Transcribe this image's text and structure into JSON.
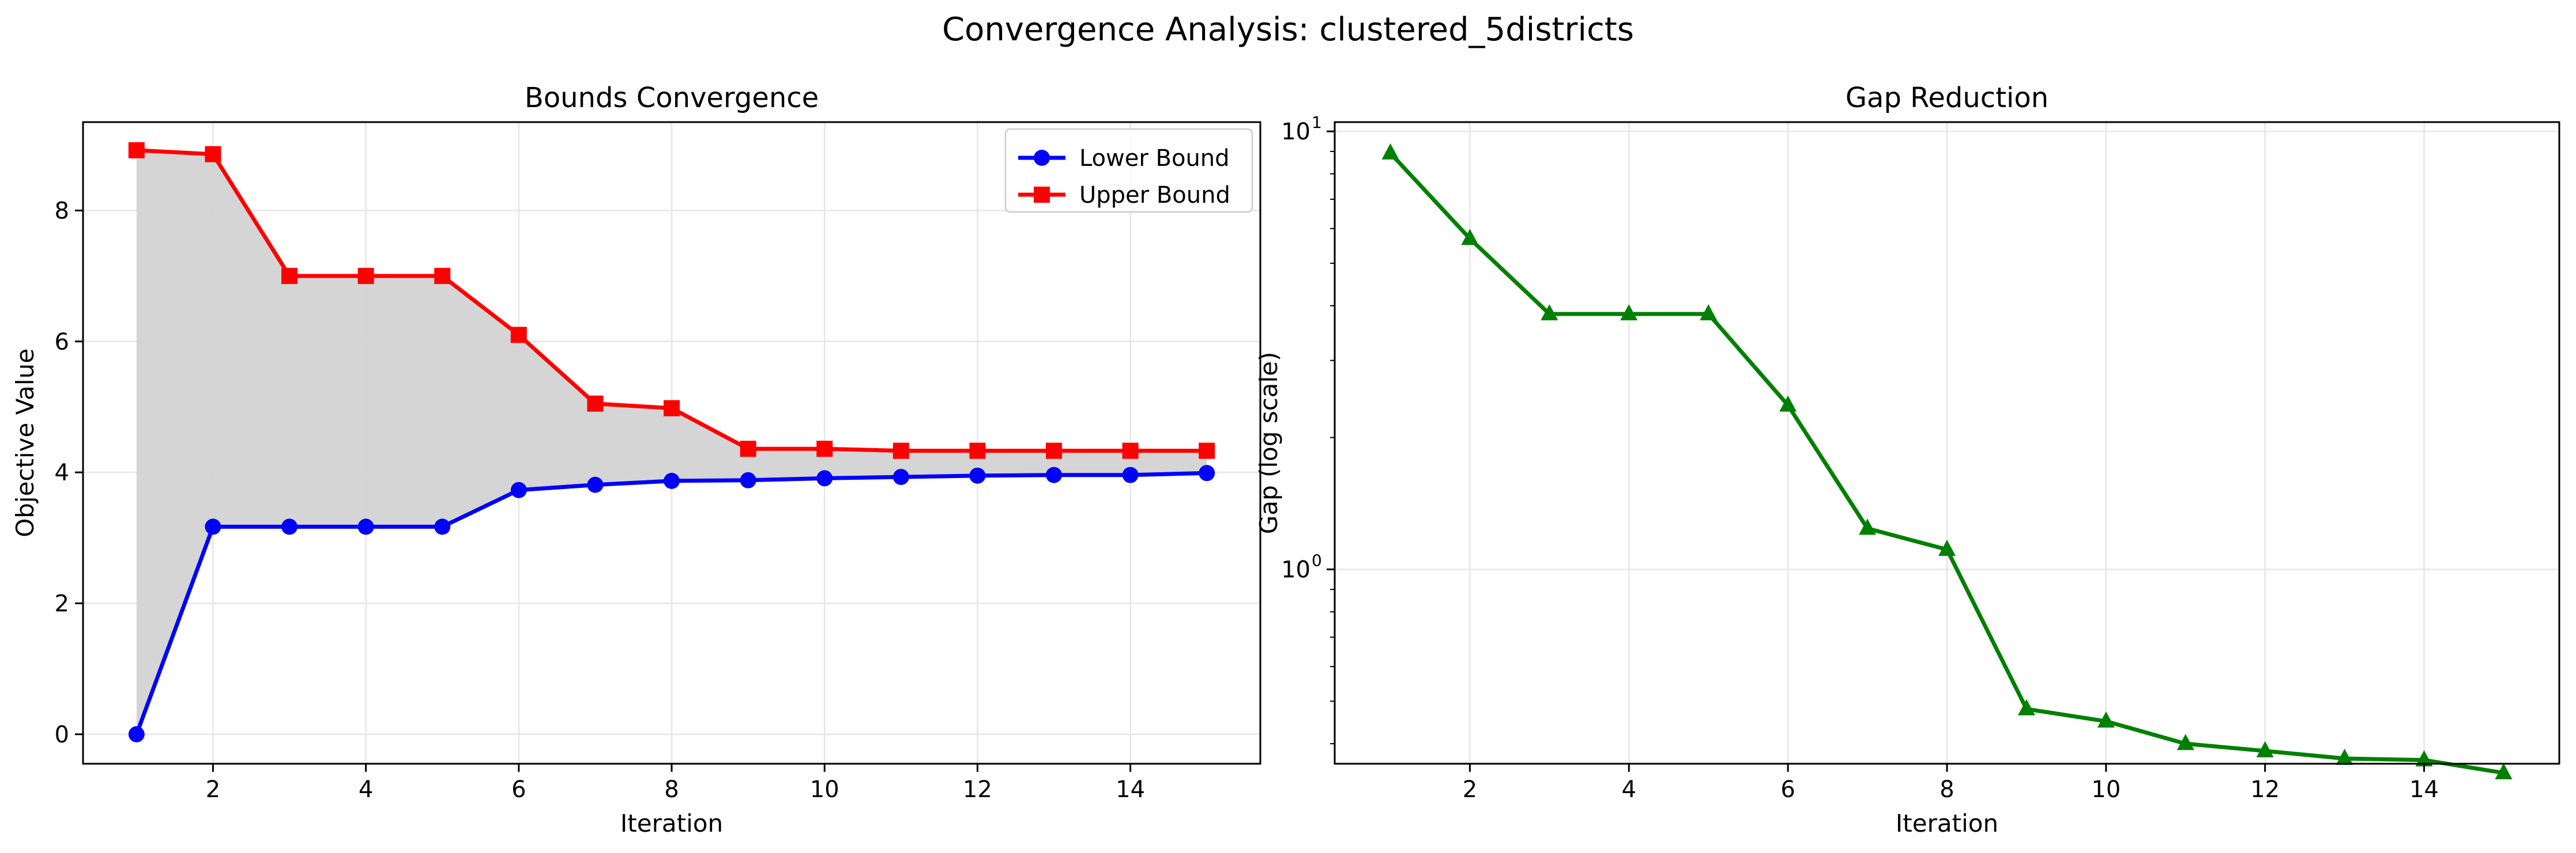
{
  "suptitle": "Convergence Analysis: clustered_5districts",
  "colors": {
    "lower": "#0000ff",
    "upper": "#ff0000",
    "gap": "#008000",
    "fill": "#d3d3d3",
    "grid": "#e6e6e6"
  },
  "chart_data": [
    {
      "type": "line",
      "title": "Bounds Convergence",
      "xlabel": "Iteration",
      "ylabel": "Objective Value",
      "x": [
        1,
        2,
        3,
        4,
        5,
        6,
        7,
        8,
        9,
        10,
        11,
        12,
        13,
        14,
        15
      ],
      "xlim": [
        0.3,
        15.7
      ],
      "ylim": [
        -0.45,
        9.35
      ],
      "xticks": [
        2,
        4,
        6,
        8,
        10,
        12,
        14
      ],
      "yticks": [
        0,
        2,
        4,
        6,
        8
      ],
      "grid": true,
      "legend": "top-right",
      "fill_between": true,
      "series": [
        {
          "name": "Lower Bound",
          "marker": "circle",
          "color": "#0000ff",
          "values": [
            0.0,
            3.17,
            3.17,
            3.17,
            3.17,
            3.73,
            3.81,
            3.87,
            3.88,
            3.91,
            3.93,
            3.95,
            3.96,
            3.96,
            3.99
          ]
        },
        {
          "name": "Upper Bound",
          "marker": "square",
          "color": "#ff0000",
          "values": [
            8.92,
            8.86,
            7.0,
            7.0,
            7.0,
            6.1,
            5.05,
            4.98,
            4.36,
            4.36,
            4.33,
            4.33,
            4.33,
            4.33,
            4.33
          ]
        }
      ]
    },
    {
      "type": "line",
      "title": "Gap Reduction",
      "xlabel": "Iteration",
      "ylabel": "Gap (log scale)",
      "yscale": "log",
      "x": [
        1,
        2,
        3,
        4,
        5,
        6,
        7,
        8,
        9,
        10,
        11,
        12,
        13,
        14,
        15
      ],
      "xlim": [
        0.3,
        15.7
      ],
      "ylim": [
        0.36,
        10.5
      ],
      "xticks": [
        2,
        4,
        6,
        8,
        10,
        12,
        14
      ],
      "yticks": [
        {
          "value": 1,
          "label": "10",
          "exp": "0"
        },
        {
          "value": 10,
          "label": "10",
          "exp": "1"
        }
      ],
      "grid": true,
      "series": [
        {
          "marker": "triangle",
          "color": "#008000",
          "values": [
            8.92,
            5.69,
            3.83,
            3.83,
            3.83,
            2.37,
            1.24,
            1.11,
            0.48,
            0.45,
            0.4,
            0.385,
            0.37,
            0.367,
            0.343
          ]
        }
      ]
    }
  ]
}
